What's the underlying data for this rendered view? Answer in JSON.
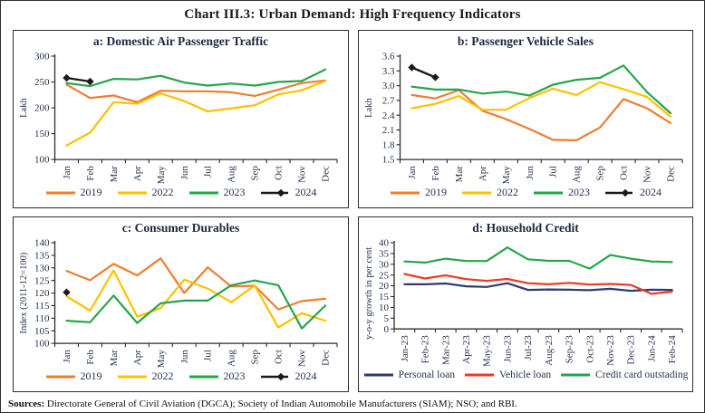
{
  "title": "Chart III.3: Urban Demand: High Frequency Indicators",
  "sources": {
    "label": "Sources:",
    "text": " Directorate General of Civil Aviation (DGCA); Society of Indian Automobile Manufacturers (SIAM); NSO; and RBI."
  },
  "colors": {
    "series_2019": "#ED7D31",
    "series_2022": "#FFC000",
    "series_2023": "#27A44C",
    "series_2024": "#1a1a1a",
    "personal_loan": "#2E3B72",
    "vehicle_loan": "#EB3B26",
    "credit_card": "#27A44C",
    "axis_text": "#25334d"
  },
  "chart_data": [
    {
      "id": "a",
      "type": "line",
      "title": "a: Domestic Air Passenger Traffic",
      "xlabel": "",
      "ylabel": "Lakh",
      "ylim": [
        100,
        300
      ],
      "yticks": [
        100,
        150,
        200,
        250,
        300
      ],
      "ytick_labels": [
        "100",
        "150",
        "200",
        "250",
        "300"
      ],
      "grid": false,
      "legend_position": "bottom",
      "categories": [
        "Jan",
        "Feb",
        "Mar",
        "Apr",
        "May",
        "Jun",
        "Jul",
        "Aug",
        "Sep",
        "Oct",
        "Nov",
        "Dec"
      ],
      "series": [
        {
          "name": "2019",
          "color": "#ED7D31",
          "values": [
            245,
            219,
            224,
            211,
            233,
            232,
            232,
            230,
            223,
            235,
            248,
            253
          ]
        },
        {
          "name": "2022",
          "color": "#FFC000",
          "values": [
            127,
            152,
            211,
            208,
            228,
            213,
            193,
            199,
            205,
            226,
            234,
            252
          ]
        },
        {
          "name": "2023",
          "color": "#27A44C",
          "values": [
            248,
            242,
            256,
            255,
            262,
            249,
            243,
            247,
            243,
            250,
            252,
            274
          ]
        },
        {
          "name": "2024",
          "color": "#1a1a1a",
          "marker": "diamond",
          "width": 2.4,
          "values": [
            258,
            251,
            null,
            null,
            null,
            null,
            null,
            null,
            null,
            null,
            null,
            null
          ]
        }
      ]
    },
    {
      "id": "b",
      "type": "line",
      "title": "b: Passenger Vehicle Sales",
      "xlabel": "",
      "ylabel": "Lakh",
      "ylim": [
        1.5,
        3.6
      ],
      "yticks": [
        1.5,
        1.8,
        2.1,
        2.4,
        2.7,
        3.0,
        3.3,
        3.6
      ],
      "ytick_labels": [
        "1.5",
        "1.8",
        "2.1",
        "2.4",
        "2.7",
        "3.0",
        "3.3",
        "3.6"
      ],
      "grid": false,
      "legend_position": "bottom",
      "categories": [
        "Jan",
        "Feb",
        "Mar",
        "Apr",
        "May",
        "Jun",
        "Jul",
        "Aug",
        "Sep",
        "Oct",
        "Nov",
        "Dec"
      ],
      "series": [
        {
          "name": "2019",
          "color": "#ED7D31",
          "values": [
            2.81,
            2.74,
            2.91,
            2.49,
            2.32,
            2.12,
            1.9,
            1.89,
            2.15,
            2.73,
            2.54,
            2.24
          ]
        },
        {
          "name": "2022",
          "color": "#FFC000",
          "values": [
            2.54,
            2.63,
            2.79,
            2.51,
            2.51,
            2.75,
            2.94,
            2.81,
            3.07,
            2.93,
            2.77,
            2.37
          ]
        },
        {
          "name": "2023",
          "color": "#27A44C",
          "values": [
            2.98,
            2.92,
            2.92,
            2.84,
            2.88,
            2.8,
            3.02,
            3.12,
            3.16,
            3.41,
            2.87,
            2.44
          ]
        },
        {
          "name": "2024",
          "color": "#1a1a1a",
          "marker": "diamond",
          "width": 2.4,
          "values": [
            3.37,
            3.17,
            null,
            null,
            null,
            null,
            null,
            null,
            null,
            null,
            null,
            null
          ]
        }
      ]
    },
    {
      "id": "c",
      "type": "line",
      "title": "c: Consumer Durables",
      "xlabel": "",
      "ylabel": "Index (2011-12=100)",
      "ylim": [
        100,
        140
      ],
      "yticks": [
        100,
        105,
        110,
        115,
        120,
        125,
        130,
        135,
        140
      ],
      "ytick_labels": [
        "100",
        "105",
        "110",
        "115",
        "120",
        "125",
        "130",
        "135",
        "140"
      ],
      "grid": false,
      "legend_position": "bottom",
      "categories": [
        "Jan",
        "Feb",
        "Mar",
        "Apr",
        "May",
        "Jun",
        "Jul",
        "Aug",
        "Sep",
        "Oct",
        "Nov",
        "Dec"
      ],
      "series": [
        {
          "name": "2019",
          "color": "#ED7D31",
          "values": [
            128.8,
            125.1,
            131.6,
            127.0,
            133.8,
            120.0,
            130.2,
            122.6,
            122.9,
            113.5,
            116.8,
            117.7
          ]
        },
        {
          "name": "2022",
          "color": "#FFC000",
          "values": [
            118.7,
            113.0,
            129.0,
            110.6,
            114.0,
            125.3,
            121.8,
            116.3,
            123.0,
            106.3,
            112.0,
            109.0
          ]
        },
        {
          "name": "2023",
          "color": "#27A44C",
          "values": [
            109.0,
            108.4,
            119.0,
            108.1,
            115.9,
            117.0,
            117.0,
            123.1,
            125.0,
            123.1,
            105.9,
            115.0
          ]
        },
        {
          "name": "2024",
          "color": "#1a1a1a",
          "marker": "diamond",
          "width": 2.4,
          "values": [
            120.3,
            null,
            null,
            null,
            null,
            null,
            null,
            null,
            null,
            null,
            null,
            null
          ]
        }
      ]
    },
    {
      "id": "d",
      "type": "line",
      "title": "d: Household Credit",
      "xlabel": "",
      "ylabel": "y-o-y growth in per cent",
      "ylim": [
        0,
        40
      ],
      "yticks": [
        0,
        5,
        10,
        15,
        20,
        25,
        30,
        35,
        40
      ],
      "ytick_labels": [
        "0",
        "5",
        "10",
        "15",
        "20",
        "25",
        "30",
        "35",
        "40"
      ],
      "grid": false,
      "legend_position": "bottom",
      "categories": [
        "Jan-23",
        "Feb-23",
        "Mar-23",
        "Apr-23",
        "May-23",
        "Jun-23",
        "Jul-23",
        "Aug-23",
        "Sep-23",
        "Oct-23",
        "Nov-23",
        "Dec-23",
        "Jan-24",
        "Feb-24"
      ],
      "series": [
        {
          "name": "Personal loan",
          "color": "#2E3B72",
          "values": [
            20.7,
            20.7,
            21.1,
            19.8,
            19.5,
            21.2,
            18.1,
            18.3,
            18.2,
            18.0,
            18.6,
            17.7,
            18.2,
            18.1
          ]
        },
        {
          "name": "Vehicle loan",
          "color": "#EB3B26",
          "values": [
            25.5,
            23.4,
            24.9,
            23.1,
            22.3,
            23.2,
            21.2,
            20.7,
            21.4,
            20.6,
            20.9,
            20.4,
            16.3,
            17.3
          ]
        },
        {
          "name": "Credit card outstading",
          "color": "#27A44C",
          "values": [
            31.3,
            30.8,
            32.6,
            31.5,
            31.5,
            37.8,
            32.3,
            31.6,
            31.6,
            28.0,
            34.3,
            32.6,
            31.3,
            31.0
          ]
        }
      ]
    }
  ]
}
